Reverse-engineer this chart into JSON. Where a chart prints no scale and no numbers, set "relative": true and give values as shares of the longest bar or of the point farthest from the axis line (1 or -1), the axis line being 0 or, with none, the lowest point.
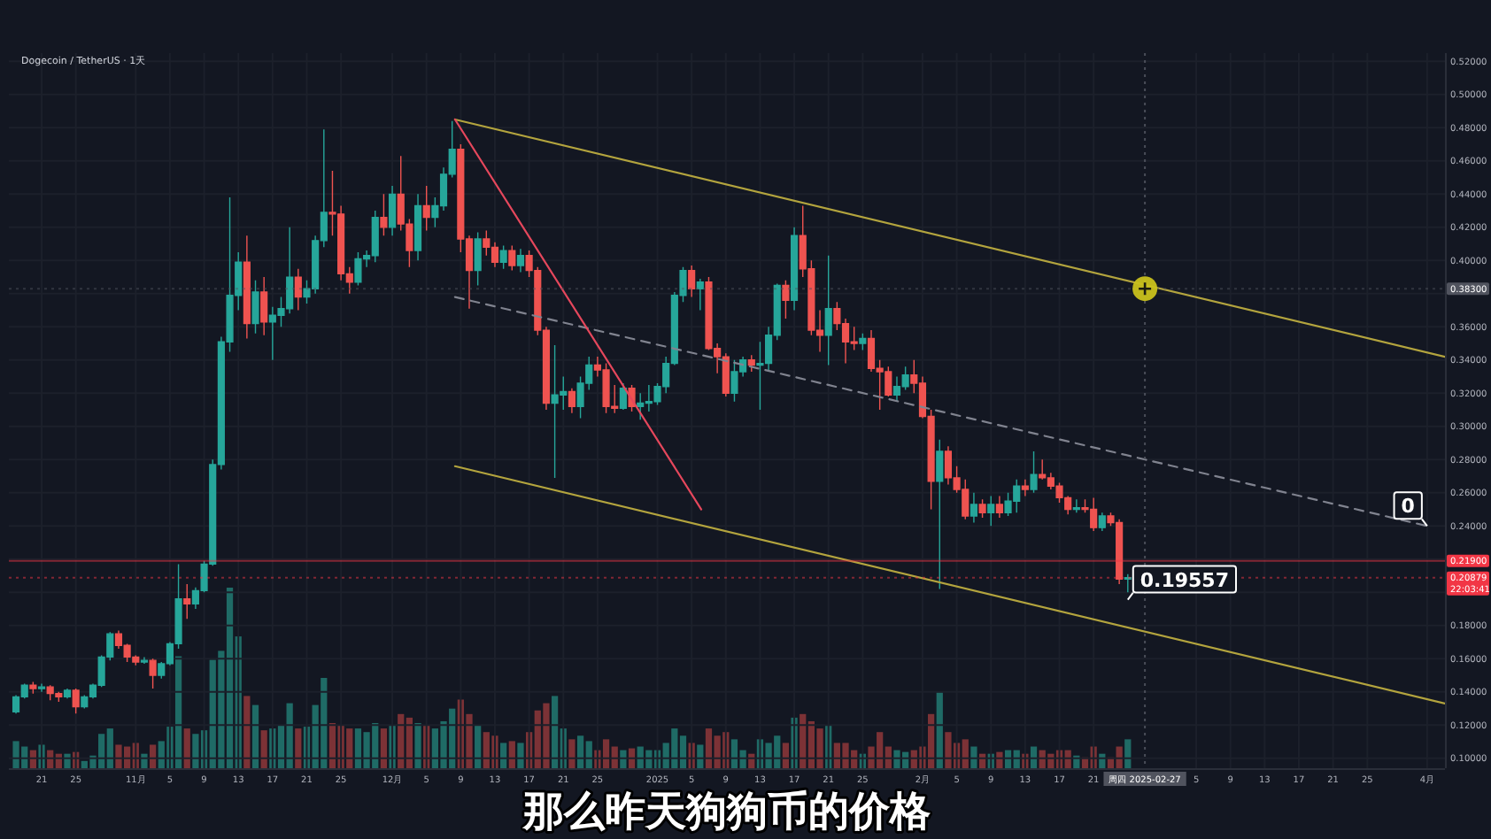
{
  "chart_data": [
    {
      "type": "candlestick",
      "title": "Dogecoin / TetherUS · 1天",
      "x": [
        "2024-10-18",
        "2024-10-19",
        "2024-10-20",
        "2024-10-21",
        "2024-10-22",
        "2024-10-23",
        "2024-10-24",
        "2024-10-25",
        "2024-10-26",
        "2024-10-27",
        "2024-10-28",
        "2024-10-29",
        "2024-10-30",
        "2024-10-31",
        "2024-11-01",
        "2024-11-02",
        "2024-11-03",
        "2024-11-04",
        "2024-11-05",
        "2024-11-06",
        "2024-11-07",
        "2024-11-08",
        "2024-11-09",
        "2024-11-10",
        "2024-11-11",
        "2024-11-12",
        "2024-11-13",
        "2024-11-14",
        "2024-11-15",
        "2024-11-16",
        "2024-11-17",
        "2024-11-18",
        "2024-11-19",
        "2024-11-20",
        "2024-11-21",
        "2024-11-22",
        "2024-11-23",
        "2024-11-24",
        "2024-11-25",
        "2024-11-26",
        "2024-11-27",
        "2024-11-28",
        "2024-11-29",
        "2024-11-30",
        "2024-12-01",
        "2024-12-02",
        "2024-12-03",
        "2024-12-04",
        "2024-12-05",
        "2024-12-06",
        "2024-12-07",
        "2024-12-08",
        "2024-12-09",
        "2024-12-10",
        "2024-12-11",
        "2024-12-12",
        "2024-12-13",
        "2024-12-14",
        "2024-12-15",
        "2024-12-16",
        "2024-12-17",
        "2024-12-18",
        "2024-12-19",
        "2024-12-20",
        "2024-12-21",
        "2024-12-22",
        "2024-12-23",
        "2024-12-24",
        "2024-12-25",
        "2024-12-26",
        "2024-12-27",
        "2024-12-28",
        "2024-12-29",
        "2024-12-30",
        "2024-12-31",
        "2025-01-01",
        "2025-01-02",
        "2025-01-03",
        "2025-01-04",
        "2025-01-05",
        "2025-01-06",
        "2025-01-07",
        "2025-01-08",
        "2025-01-09",
        "2025-01-10",
        "2025-01-11",
        "2025-01-12",
        "2025-01-13",
        "2025-01-14",
        "2025-01-15",
        "2025-01-16",
        "2025-01-17",
        "2025-01-18",
        "2025-01-19",
        "2025-01-20",
        "2025-01-21",
        "2025-01-22",
        "2025-01-23",
        "2025-01-24",
        "2025-01-25",
        "2025-01-26",
        "2025-01-27",
        "2025-01-28",
        "2025-01-29",
        "2025-01-30",
        "2025-01-31",
        "2025-02-01",
        "2025-02-02",
        "2025-02-03",
        "2025-02-04",
        "2025-02-05",
        "2025-02-06",
        "2025-02-07",
        "2025-02-08",
        "2025-02-09",
        "2025-02-10",
        "2025-02-11",
        "2025-02-12",
        "2025-02-13",
        "2025-02-14",
        "2025-02-15",
        "2025-02-16",
        "2025-02-17",
        "2025-02-18",
        "2025-02-19",
        "2025-02-20",
        "2025-02-21",
        "2025-02-22",
        "2025-02-23",
        "2025-02-24",
        "2025-02-25"
      ],
      "ohlc": [
        [
          0.128,
          0.138,
          0.127,
          0.137
        ],
        [
          0.137,
          0.145,
          0.136,
          0.144
        ],
        [
          0.144,
          0.146,
          0.139,
          0.142
        ],
        [
          0.142,
          0.145,
          0.14,
          0.143
        ],
        [
          0.143,
          0.144,
          0.135,
          0.139
        ],
        [
          0.139,
          0.14,
          0.134,
          0.137
        ],
        [
          0.137,
          0.142,
          0.136,
          0.141
        ],
        [
          0.141,
          0.142,
          0.127,
          0.131
        ],
        [
          0.131,
          0.138,
          0.13,
          0.137
        ],
        [
          0.137,
          0.145,
          0.136,
          0.144
        ],
        [
          0.144,
          0.162,
          0.143,
          0.161
        ],
        [
          0.161,
          0.176,
          0.159,
          0.175
        ],
        [
          0.175,
          0.177,
          0.166,
          0.168
        ],
        [
          0.168,
          0.169,
          0.158,
          0.161
        ],
        [
          0.161,
          0.162,
          0.156,
          0.158
        ],
        [
          0.158,
          0.161,
          0.157,
          0.159
        ],
        [
          0.159,
          0.16,
          0.142,
          0.15
        ],
        [
          0.15,
          0.158,
          0.148,
          0.157
        ],
        [
          0.157,
          0.17,
          0.156,
          0.169
        ],
        [
          0.169,
          0.217,
          0.166,
          0.196
        ],
        [
          0.196,
          0.205,
          0.184,
          0.193
        ],
        [
          0.193,
          0.203,
          0.19,
          0.201
        ],
        [
          0.201,
          0.219,
          0.2,
          0.217
        ],
        [
          0.217,
          0.28,
          0.216,
          0.277
        ],
        [
          0.277,
          0.354,
          0.274,
          0.351
        ],
        [
          0.351,
          0.438,
          0.345,
          0.379
        ],
        [
          0.379,
          0.405,
          0.37,
          0.399
        ],
        [
          0.399,
          0.415,
          0.353,
          0.362
        ],
        [
          0.362,
          0.388,
          0.356,
          0.381
        ],
        [
          0.381,
          0.39,
          0.355,
          0.363
        ],
        [
          0.363,
          0.372,
          0.34,
          0.367
        ],
        [
          0.367,
          0.378,
          0.36,
          0.371
        ],
        [
          0.371,
          0.42,
          0.368,
          0.39
        ],
        [
          0.39,
          0.395,
          0.37,
          0.378
        ],
        [
          0.378,
          0.388,
          0.374,
          0.383
        ],
        [
          0.383,
          0.415,
          0.38,
          0.412
        ],
        [
          0.412,
          0.479,
          0.408,
          0.429
        ],
        [
          0.429,
          0.454,
          0.415,
          0.428
        ],
        [
          0.428,
          0.433,
          0.388,
          0.392
        ],
        [
          0.392,
          0.396,
          0.38,
          0.387
        ],
        [
          0.387,
          0.405,
          0.385,
          0.401
        ],
        [
          0.401,
          0.406,
          0.396,
          0.403
        ],
        [
          0.403,
          0.43,
          0.399,
          0.426
        ],
        [
          0.426,
          0.44,
          0.415,
          0.42
        ],
        [
          0.42,
          0.445,
          0.415,
          0.44
        ],
        [
          0.44,
          0.463,
          0.418,
          0.422
        ],
        [
          0.422,
          0.425,
          0.396,
          0.406
        ],
        [
          0.406,
          0.44,
          0.4,
          0.433
        ],
        [
          0.433,
          0.445,
          0.418,
          0.426
        ],
        [
          0.426,
          0.438,
          0.42,
          0.433
        ],
        [
          0.433,
          0.456,
          0.43,
          0.452
        ],
        [
          0.452,
          0.484,
          0.45,
          0.467
        ],
        [
          0.467,
          0.47,
          0.405,
          0.413
        ],
        [
          0.413,
          0.415,
          0.371,
          0.394
        ],
        [
          0.394,
          0.417,
          0.385,
          0.413
        ],
        [
          0.413,
          0.418,
          0.403,
          0.408
        ],
        [
          0.408,
          0.411,
          0.396,
          0.399
        ],
        [
          0.399,
          0.409,
          0.395,
          0.406
        ],
        [
          0.406,
          0.409,
          0.394,
          0.397
        ],
        [
          0.397,
          0.407,
          0.393,
          0.403
        ],
        [
          0.403,
          0.406,
          0.39,
          0.394
        ],
        [
          0.394,
          0.396,
          0.355,
          0.358
        ],
        [
          0.358,
          0.36,
          0.31,
          0.314
        ],
        [
          0.314,
          0.349,
          0.269,
          0.319
        ],
        [
          0.319,
          0.33,
          0.31,
          0.321
        ],
        [
          0.321,
          0.323,
          0.308,
          0.312
        ],
        [
          0.312,
          0.33,
          0.305,
          0.326
        ],
        [
          0.326,
          0.342,
          0.322,
          0.337
        ],
        [
          0.337,
          0.342,
          0.33,
          0.334
        ],
        [
          0.334,
          0.338,
          0.308,
          0.312
        ],
        [
          0.312,
          0.325,
          0.308,
          0.311
        ],
        [
          0.311,
          0.326,
          0.31,
          0.323
        ],
        [
          0.323,
          0.325,
          0.309,
          0.312
        ],
        [
          0.312,
          0.32,
          0.304,
          0.314
        ],
        [
          0.314,
          0.325,
          0.309,
          0.315
        ],
        [
          0.315,
          0.326,
          0.313,
          0.324
        ],
        [
          0.324,
          0.342,
          0.32,
          0.338
        ],
        [
          0.338,
          0.381,
          0.337,
          0.379
        ],
        [
          0.379,
          0.396,
          0.375,
          0.394
        ],
        [
          0.394,
          0.397,
          0.378,
          0.383
        ],
        [
          0.383,
          0.389,
          0.37,
          0.387
        ],
        [
          0.387,
          0.39,
          0.346,
          0.347
        ],
        [
          0.347,
          0.35,
          0.332,
          0.342
        ],
        [
          0.342,
          0.344,
          0.318,
          0.32
        ],
        [
          0.32,
          0.34,
          0.315,
          0.333
        ],
        [
          0.333,
          0.342,
          0.33,
          0.34
        ],
        [
          0.34,
          0.343,
          0.333,
          0.337
        ],
        [
          0.337,
          0.351,
          0.31,
          0.338
        ],
        [
          0.338,
          0.36,
          0.334,
          0.355
        ],
        [
          0.355,
          0.386,
          0.352,
          0.385
        ],
        [
          0.385,
          0.388,
          0.365,
          0.376
        ],
        [
          0.376,
          0.42,
          0.37,
          0.415
        ],
        [
          0.415,
          0.433,
          0.39,
          0.395
        ],
        [
          0.395,
          0.4,
          0.355,
          0.358
        ],
        [
          0.358,
          0.37,
          0.345,
          0.355
        ],
        [
          0.355,
          0.403,
          0.337,
          0.371
        ],
        [
          0.371,
          0.375,
          0.358,
          0.362
        ],
        [
          0.362,
          0.365,
          0.338,
          0.351
        ],
        [
          0.351,
          0.36,
          0.346,
          0.35
        ],
        [
          0.35,
          0.356,
          0.346,
          0.353
        ],
        [
          0.353,
          0.358,
          0.333,
          0.335
        ],
        [
          0.335,
          0.34,
          0.31,
          0.333
        ],
        [
          0.333,
          0.336,
          0.318,
          0.319
        ],
        [
          0.319,
          0.33,
          0.315,
          0.324
        ],
        [
          0.324,
          0.336,
          0.322,
          0.331
        ],
        [
          0.331,
          0.34,
          0.32,
          0.326
        ],
        [
          0.326,
          0.33,
          0.305,
          0.306
        ],
        [
          0.306,
          0.31,
          0.25,
          0.267
        ],
        [
          0.267,
          0.292,
          0.202,
          0.285
        ],
        [
          0.285,
          0.288,
          0.265,
          0.269
        ],
        [
          0.269,
          0.276,
          0.26,
          0.262
        ],
        [
          0.262,
          0.268,
          0.244,
          0.246
        ],
        [
          0.246,
          0.26,
          0.242,
          0.253
        ],
        [
          0.253,
          0.256,
          0.245,
          0.248
        ],
        [
          0.248,
          0.258,
          0.24,
          0.253
        ],
        [
          0.253,
          0.258,
          0.245,
          0.248
        ],
        [
          0.248,
          0.26,
          0.246,
          0.255
        ],
        [
          0.255,
          0.268,
          0.248,
          0.264
        ],
        [
          0.264,
          0.268,
          0.258,
          0.262
        ],
        [
          0.262,
          0.285,
          0.26,
          0.271
        ],
        [
          0.271,
          0.28,
          0.268,
          0.269
        ],
        [
          0.269,
          0.272,
          0.262,
          0.264
        ],
        [
          0.264,
          0.266,
          0.254,
          0.257
        ],
        [
          0.257,
          0.258,
          0.247,
          0.25
        ],
        [
          0.25,
          0.256,
          0.248,
          0.251
        ],
        [
          0.251,
          0.256,
          0.248,
          0.25
        ],
        [
          0.25,
          0.257,
          0.237,
          0.239
        ],
        [
          0.239,
          0.248,
          0.237,
          0.246
        ],
        [
          0.246,
          0.248,
          0.24,
          0.242
        ],
        [
          0.242,
          0.244,
          0.205,
          0.208
        ],
        [
          0.208,
          0.211,
          0.2,
          0.20879
        ]
      ],
      "xlim": [
        "2024-10-17T04:00",
        "2025-04-03T02:00"
      ],
      "ylim": [
        0.094,
        0.525
      ],
      "xticks": [
        {
          "value": "2024-10-21",
          "label": "21"
        },
        {
          "value": "2024-10-25",
          "label": "25"
        },
        {
          "value": "2024-11-01",
          "label": "11月"
        },
        {
          "value": "2024-11-05",
          "label": "5"
        },
        {
          "value": "2024-11-09",
          "label": "9"
        },
        {
          "value": "2024-11-13",
          "label": "13"
        },
        {
          "value": "2024-11-17",
          "label": "17"
        },
        {
          "value": "2024-11-21",
          "label": "21"
        },
        {
          "value": "2024-11-25",
          "label": "25"
        },
        {
          "value": "2024-12-01",
          "label": "12月"
        },
        {
          "value": "2024-12-05",
          "label": "5"
        },
        {
          "value": "2024-12-09",
          "label": "9"
        },
        {
          "value": "2024-12-13",
          "label": "13"
        },
        {
          "value": "2024-12-17",
          "label": "17"
        },
        {
          "value": "2024-12-21",
          "label": "21"
        },
        {
          "value": "2024-12-25",
          "label": "25"
        },
        {
          "value": "2025-01-01",
          "label": "2025"
        },
        {
          "value": "2025-01-05",
          "label": "5"
        },
        {
          "value": "2025-01-09",
          "label": "9"
        },
        {
          "value": "2025-01-13",
          "label": "13"
        },
        {
          "value": "2025-01-17",
          "label": "17"
        },
        {
          "value": "2025-01-21",
          "label": "21"
        },
        {
          "value": "2025-01-25",
          "label": "25"
        },
        {
          "value": "2025-02-01",
          "label": "2月"
        },
        {
          "value": "2025-02-05",
          "label": "5"
        },
        {
          "value": "2025-02-09",
          "label": "9"
        },
        {
          "value": "2025-02-13",
          "label": "13"
        },
        {
          "value": "2025-02-17",
          "label": "17"
        },
        {
          "value": "2025-02-21",
          "label": "21"
        },
        {
          "value": "2025-03-05",
          "label": "5"
        },
        {
          "value": "2025-03-09",
          "label": "9"
        },
        {
          "value": "2025-03-13",
          "label": "13"
        },
        {
          "value": "2025-03-17",
          "label": "17"
        },
        {
          "value": "2025-03-21",
          "label": "21"
        },
        {
          "value": "2025-03-25",
          "label": "25"
        },
        {
          "value": "2025-04-01",
          "label": "4月"
        }
      ],
      "yticks": [
        {
          "value": 0.1,
          "label": "0.10000"
        },
        {
          "value": 0.12,
          "label": "0.12000"
        },
        {
          "value": 0.14,
          "label": "0.14000"
        },
        {
          "value": 0.16,
          "label": "0.16000"
        },
        {
          "value": 0.18,
          "label": "0.18000"
        },
        {
          "value": 0.2,
          "label": null
        },
        {
          "value": 0.22,
          "label": null
        },
        {
          "value": 0.24,
          "label": "0.24000"
        },
        {
          "value": 0.26,
          "label": "0.26000"
        },
        {
          "value": 0.28,
          "label": "0.28000"
        },
        {
          "value": 0.3,
          "label": "0.30000"
        },
        {
          "value": 0.32,
          "label": "0.32000"
        },
        {
          "value": 0.34,
          "label": "0.34000"
        },
        {
          "value": 0.36,
          "label": "0.36000"
        },
        {
          "value": 0.38,
          "label": null
        },
        {
          "value": 0.4,
          "label": "0.40000"
        },
        {
          "value": 0.42,
          "label": "0.42000"
        },
        {
          "value": 0.44,
          "label": "0.44000"
        },
        {
          "value": 0.46,
          "label": "0.46000"
        },
        {
          "value": 0.48,
          "label": "0.48000"
        },
        {
          "value": 0.5,
          "label": "0.50000"
        },
        {
          "value": 0.52,
          "label": "0.52000"
        }
      ],
      "grid": true,
      "series": [
        {
          "type": "line",
          "x": [
            "2024-12-08T08:00",
            "2025-04-03T02:00"
          ],
          "values": [
            0.485,
            0.342
          ],
          "color": "#b3a43e",
          "line_style": "solid"
        },
        {
          "type": "line",
          "x": [
            "2024-12-08T08:00",
            "2025-04-03T02:00"
          ],
          "values": [
            0.276,
            0.133
          ],
          "color": "#b3a43e",
          "line_style": "solid"
        },
        {
          "type": "line",
          "x": [
            "2024-12-08T08:00",
            "2025-04-01"
          ],
          "values": [
            0.378,
            0.24
          ],
          "color": "#80838f",
          "line_style": "dashed"
        },
        {
          "type": "line",
          "x": [
            "2024-12-08T08:00",
            "2025-01-06T03:00"
          ],
          "values": [
            0.485,
            0.25
          ],
          "color": "#e5475c",
          "line_style": "solid"
        }
      ],
      "ref_lines": [
        {
          "axis": "y",
          "value": 0.219,
          "label": "0.21900",
          "color": "#f23645",
          "line_style": "solid"
        },
        {
          "axis": "y",
          "value": 0.20879,
          "label": "0.20879\n22:03:41",
          "color": "#f23645",
          "line_style": "dotted"
        },
        {
          "axis": "y",
          "value": 0.383,
          "label": "0.38300",
          "color": "#50535e",
          "line_style": "dotted"
        },
        {
          "axis": "x",
          "value": "2025-02-27",
          "label": "周四 2025-02-27",
          "color": "#50535e",
          "line_style": "dotted"
        }
      ],
      "annotations": [
        "那么昨天狗狗币的价格",
        {
          "text": "0.19557",
          "x": "2025-02-25",
          "y": 0.19557
        },
        {
          "text": "0",
          "x": "2025-04-01",
          "y": 0.24
        }
      ]
    },
    {
      "type": "bar",
      "relative": true,
      "xlim": [
        "2024-10-17T04:00",
        "2025-04-03T02:00"
      ],
      "x": [
        "2024-10-18",
        "2024-10-19",
        "2024-10-20",
        "2024-10-21",
        "2024-10-22",
        "2024-10-23",
        "2024-10-24",
        "2024-10-25",
        "2024-10-26",
        "2024-10-27",
        "2024-10-28",
        "2024-10-29",
        "2024-10-30",
        "2024-10-31",
        "2024-11-01",
        "2024-11-02",
        "2024-11-03",
        "2024-11-04",
        "2024-11-05",
        "2024-11-06",
        "2024-11-07",
        "2024-11-08",
        "2024-11-09",
        "2024-11-10",
        "2024-11-11",
        "2024-11-12",
        "2024-11-13",
        "2024-11-14",
        "2024-11-15",
        "2024-11-16",
        "2024-11-17",
        "2024-11-18",
        "2024-11-19",
        "2024-11-20",
        "2024-11-21",
        "2024-11-22",
        "2024-11-23",
        "2024-11-24",
        "2024-11-25",
        "2024-11-26",
        "2024-11-27",
        "2024-11-28",
        "2024-11-29",
        "2024-11-30",
        "2024-12-01",
        "2024-12-02",
        "2024-12-03",
        "2024-12-04",
        "2024-12-05",
        "2024-12-06",
        "2024-12-07",
        "2024-12-08",
        "2024-12-09",
        "2024-12-10",
        "2024-12-11",
        "2024-12-12",
        "2024-12-13",
        "2024-12-14",
        "2024-12-15",
        "2024-12-16",
        "2024-12-17",
        "2024-12-18",
        "2024-12-19",
        "2024-12-20",
        "2024-12-21",
        "2024-12-22",
        "2024-12-23",
        "2024-12-24",
        "2024-12-25",
        "2024-12-26",
        "2024-12-27",
        "2024-12-28",
        "2024-12-29",
        "2024-12-30",
        "2024-12-31",
        "2025-01-01",
        "2025-01-02",
        "2025-01-03",
        "2025-01-04",
        "2025-01-05",
        "2025-01-06",
        "2025-01-07",
        "2025-01-08",
        "2025-01-09",
        "2025-01-10",
        "2025-01-11",
        "2025-01-12",
        "2025-01-13",
        "2025-01-14",
        "2025-01-15",
        "2025-01-16",
        "2025-01-17",
        "2025-01-18",
        "2025-01-19",
        "2025-01-20",
        "2025-01-21",
        "2025-01-22",
        "2025-01-23",
        "2025-01-24",
        "2025-01-25",
        "2025-01-26",
        "2025-01-27",
        "2025-01-28",
        "2025-01-29",
        "2025-01-30",
        "2025-01-31",
        "2025-02-01",
        "2025-02-02",
        "2025-02-03",
        "2025-02-04",
        "2025-02-05",
        "2025-02-06",
        "2025-02-07",
        "2025-02-08",
        "2025-02-09",
        "2025-02-10",
        "2025-02-11",
        "2025-02-12",
        "2025-02-13",
        "2025-02-14",
        "2025-02-15",
        "2025-02-16",
        "2025-02-17",
        "2025-02-18",
        "2025-02-19",
        "2025-02-20",
        "2025-02-21",
        "2025-02-22",
        "2025-02-23",
        "2025-02-24",
        "2025-02-25"
      ],
      "values": [
        0.15,
        0.12,
        0.1,
        0.13,
        0.1,
        0.08,
        0.08,
        0.09,
        0.04,
        0.07,
        0.19,
        0.22,
        0.13,
        0.12,
        0.14,
        0.08,
        0.13,
        0.15,
        0.23,
        0.62,
        0.22,
        0.19,
        0.21,
        0.6,
        0.65,
        1,
        0.73,
        0.4,
        0.35,
        0.21,
        0.22,
        0.24,
        0.36,
        0.22,
        0.23,
        0.35,
        0.5,
        0.25,
        0.24,
        0.22,
        0.22,
        0.2,
        0.25,
        0.22,
        0.24,
        0.3,
        0.28,
        0.25,
        0.24,
        0.22,
        0.26,
        0.33,
        0.38,
        0.3,
        0.24,
        0.2,
        0.18,
        0.14,
        0.15,
        0.14,
        0.2,
        0.32,
        0.36,
        0.4,
        0.22,
        0.16,
        0.18,
        0.15,
        0.1,
        0.16,
        0.12,
        0.1,
        0.11,
        0.12,
        0.1,
        0.1,
        0.14,
        0.22,
        0.18,
        0.14,
        0.13,
        0.22,
        0.18,
        0.2,
        0.16,
        0.1,
        0.08,
        0.16,
        0.14,
        0.18,
        0.14,
        0.28,
        0.3,
        0.26,
        0.22,
        0.24,
        0.14,
        0.14,
        0.1,
        0.08,
        0.12,
        0.2,
        0.12,
        0.1,
        0.09,
        0.1,
        0.12,
        0.3,
        0.42,
        0.2,
        0.14,
        0.16,
        0.12,
        0.08,
        0.08,
        0.09,
        0.1,
        0.1,
        0.08,
        0.12,
        0.1,
        0.08,
        0.1,
        0.1,
        0.07,
        0.06,
        0.12,
        0.08,
        0.06,
        0.12,
        0.16
      ],
      "colors": [
        "#1f6b66",
        "#1f6b66",
        "#7c3236",
        "#1f6b66",
        "#7c3236",
        "#7c3236",
        "#1f6b66",
        "#7c3236",
        "#1f6b66",
        "#1f6b66",
        "#1f6b66",
        "#1f6b66",
        "#7c3236",
        "#7c3236",
        "#7c3236",
        "#1f6b66",
        "#7c3236",
        "#1f6b66",
        "#1f6b66",
        "#1f6b66",
        "#7c3236",
        "#1f6b66",
        "#1f6b66",
        "#1f6b66",
        "#1f6b66",
        "#1f6b66",
        "#1f6b66",
        "#7c3236",
        "#1f6b66",
        "#7c3236",
        "#1f6b66",
        "#1f6b66",
        "#1f6b66",
        "#7c3236",
        "#1f6b66",
        "#1f6b66",
        "#1f6b66",
        "#7c3236",
        "#7c3236",
        "#7c3236",
        "#1f6b66",
        "#1f6b66",
        "#1f6b66",
        "#7c3236",
        "#1f6b66",
        "#7c3236",
        "#7c3236",
        "#1f6b66",
        "#7c3236",
        "#1f6b66",
        "#1f6b66",
        "#1f6b66",
        "#7c3236",
        "#7c3236",
        "#1f6b66",
        "#7c3236",
        "#7c3236",
        "#1f6b66",
        "#7c3236",
        "#1f6b66",
        "#7c3236",
        "#7c3236",
        "#7c3236",
        "#1f6b66",
        "#1f6b66",
        "#7c3236",
        "#1f6b66",
        "#1f6b66",
        "#7c3236",
        "#7c3236",
        "#7c3236",
        "#1f6b66",
        "#7c3236",
        "#1f6b66",
        "#1f6b66",
        "#1f6b66",
        "#1f6b66",
        "#1f6b66",
        "#1f6b66",
        "#7c3236",
        "#1f6b66",
        "#7c3236",
        "#7c3236",
        "#7c3236",
        "#1f6b66",
        "#1f6b66",
        "#7c3236",
        "#1f6b66",
        "#1f6b66",
        "#1f6b66",
        "#7c3236",
        "#1f6b66",
        "#7c3236",
        "#7c3236",
        "#7c3236",
        "#1f6b66",
        "#7c3236",
        "#7c3236",
        "#7c3236",
        "#1f6b66",
        "#7c3236",
        "#7c3236",
        "#7c3236",
        "#1f6b66",
        "#1f6b66",
        "#7c3236",
        "#7c3236",
        "#7c3236",
        "#1f6b66",
        "#7c3236",
        "#7c3236",
        "#7c3236",
        "#1f6b66",
        "#7c3236",
        "#1f6b66",
        "#7c3236",
        "#1f6b66",
        "#1f6b66",
        "#7c3236",
        "#1f6b66",
        "#7c3236",
        "#7c3236",
        "#7c3236",
        "#7c3236",
        "#1f6b66",
        "#7c3236",
        "#7c3236",
        "#1f6b66",
        "#7c3236",
        "#7c3236",
        "#1f6b66"
      ]
    }
  ]
}
